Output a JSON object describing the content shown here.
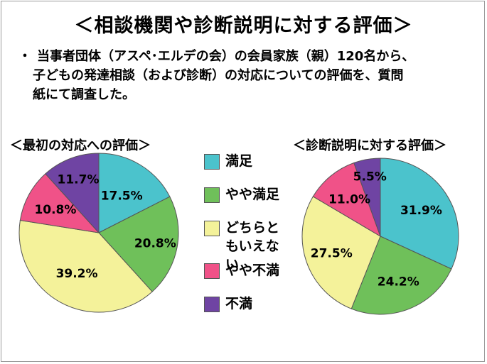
{
  "title": "＜相談機関や診断説明に対する評価＞",
  "description": {
    "bullet": "・",
    "line1": "当事者団体（アスペ･エルデの会）の会員家族（親）120名から、",
    "line2": "子どもの発達相談（および診断）の対応についての評価を、質問",
    "line3": "紙にて調査した。"
  },
  "legend": [
    {
      "label": "満足",
      "color": "#4bc3cc"
    },
    {
      "label": "やや満足",
      "color": "#6fc05a"
    },
    {
      "label": "どちらともいえない",
      "color": "#f4f29a"
    },
    {
      "label": "やや不満",
      "color": "#f05288"
    },
    {
      "label": "不満",
      "color": "#6f44a3"
    }
  ],
  "chart_data": [
    {
      "type": "pie",
      "title": "＜最初の対応への評価＞",
      "categories": [
        "満足",
        "やや満足",
        "どちらともいえない",
        "やや不満",
        "不満"
      ],
      "values": [
        17.5,
        20.8,
        39.2,
        10.8,
        11.7
      ],
      "labels": [
        "17.5%",
        "20.8%",
        "39.2%",
        "10.8%",
        "11.7%"
      ],
      "colors": [
        "#4bc3cc",
        "#6fc05a",
        "#f4f29a",
        "#f05288",
        "#6f44a3"
      ]
    },
    {
      "type": "pie",
      "title": "＜診断説明に対する評価＞",
      "categories": [
        "満足",
        "やや満足",
        "どちらともいえない",
        "やや不満",
        "不満"
      ],
      "values": [
        31.9,
        24.2,
        27.5,
        11.0,
        5.5
      ],
      "labels": [
        "31.9%",
        "24.2%",
        "27.5%",
        "11.0%",
        "5.5%"
      ],
      "colors": [
        "#4bc3cc",
        "#6fc05a",
        "#f4f29a",
        "#f05288",
        "#6f44a3"
      ]
    }
  ]
}
